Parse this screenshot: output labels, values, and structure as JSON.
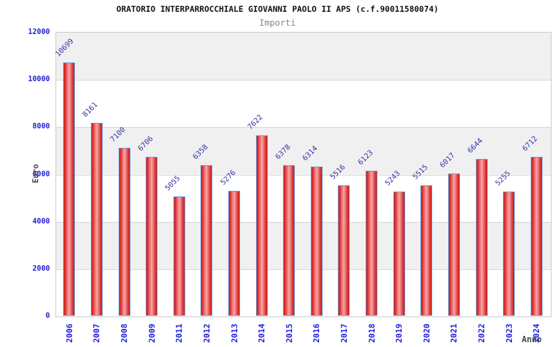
{
  "header": {
    "title": "ORATORIO INTERPARROCCHIALE GIOVANNI PAOLO II APS (c.f.90011580074)",
    "subtitle": "Importi"
  },
  "axes": {
    "ylabel": "Euro",
    "xlabel": "Anno"
  },
  "chart_data": {
    "type": "bar",
    "title": "ORATORIO INTERPARROCCHIALE GIOVANNI PAOLO II APS (c.f.90011580074)",
    "subtitle": "Importi",
    "xlabel": "Anno",
    "ylabel": "Euro",
    "categories": [
      "2006",
      "2007",
      "2008",
      "2009",
      "2011",
      "2012",
      "2013",
      "2014",
      "2015",
      "2016",
      "2017",
      "2018",
      "2019",
      "2020",
      "2021",
      "2022",
      "2023",
      "2024"
    ],
    "values": [
      10699,
      8161,
      7100,
      6706,
      5055,
      6358,
      5276,
      7622,
      6378,
      6314,
      5516,
      6123,
      5243,
      5515,
      6017,
      6644,
      5255,
      6712
    ],
    "ylim": [
      0,
      12000
    ],
    "yticks": [
      0,
      2000,
      4000,
      6000,
      8000,
      10000,
      12000
    ],
    "grid": "horizontal-bands",
    "legend": "none",
    "colors": {
      "bar_fill_edge": "#c61818",
      "bar_fill_mid": "#e34040",
      "bar_fill_center": "#f7a8a8",
      "bar_border": "#6a9ad4",
      "tick_text": "#2222dd",
      "value_label_text": "#3333aa",
      "axis_label_text": "#4a4a4a",
      "gridline": "#d6d6d6",
      "band_gray": "#f0f0f0",
      "plot_border": "#c9c9c9",
      "title_text": "#111111",
      "subtitle_text": "#878787"
    }
  }
}
